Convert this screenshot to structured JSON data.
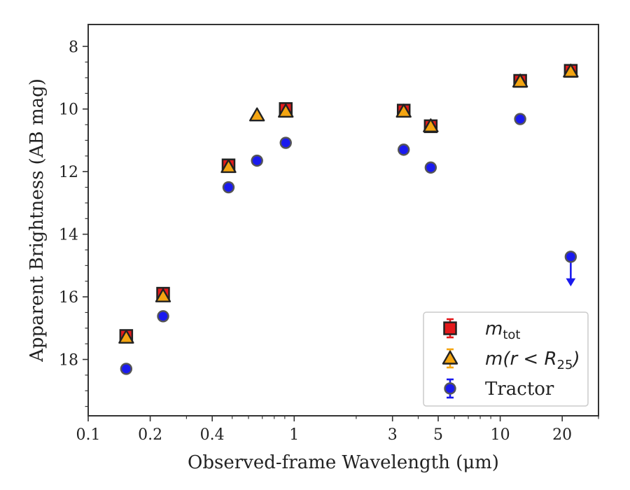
{
  "chart_data": {
    "type": "scatter",
    "xscale": "log",
    "xlim": [
      0.1,
      30
    ],
    "ylim": [
      19.8,
      7.3
    ],
    "y_inverted": true,
    "xlabel": "Observed-frame Wavelength (μm)",
    "ylabel": "Apparent Brightness (AB mag)",
    "x_ticks": [
      {
        "value": 0.1,
        "label": "0.1"
      },
      {
        "value": 0.2,
        "label": "0.2"
      },
      {
        "value": 0.4,
        "label": "0.4"
      },
      {
        "value": 1,
        "label": "1"
      },
      {
        "value": 3,
        "label": "3"
      },
      {
        "value": 5,
        "label": "5"
      },
      {
        "value": 10,
        "label": "10"
      },
      {
        "value": 20,
        "label": "20"
      }
    ],
    "y_ticks": [
      {
        "value": 8,
        "label": "8"
      },
      {
        "value": 10,
        "label": "10"
      },
      {
        "value": 12,
        "label": "12"
      },
      {
        "value": 14,
        "label": "14"
      },
      {
        "value": 16,
        "label": "16"
      },
      {
        "value": 18,
        "label": "18"
      }
    ],
    "legend_position": "lower-right",
    "series": [
      {
        "name": "m_tot",
        "legend_parts": {
          "main": "m",
          "sub": "tot"
        },
        "marker": "square",
        "color": "#e41a1c",
        "points": [
          {
            "x": 0.153,
            "y": 17.25
          },
          {
            "x": 0.231,
            "y": 15.9
          },
          {
            "x": 0.48,
            "y": 11.8
          },
          {
            "x": 0.91,
            "y": 10.0
          },
          {
            "x": 3.4,
            "y": 10.05
          },
          {
            "x": 4.6,
            "y": 10.55
          },
          {
            "x": 12.5,
            "y": 9.1
          },
          {
            "x": 22.0,
            "y": 8.78
          }
        ]
      },
      {
        "name": "m(r < R25)",
        "legend_parts": {
          "main": "m(r < R",
          "sub": "25",
          "tail": ")"
        },
        "marker": "triangle",
        "color": "#f4a511",
        "points": [
          {
            "x": 0.153,
            "y": 17.3
          },
          {
            "x": 0.231,
            "y": 15.98
          },
          {
            "x": 0.48,
            "y": 11.85
          },
          {
            "x": 0.66,
            "y": 10.2
          },
          {
            "x": 0.91,
            "y": 10.08
          },
          {
            "x": 3.4,
            "y": 10.08
          },
          {
            "x": 4.6,
            "y": 10.55
          },
          {
            "x": 12.5,
            "y": 9.12
          },
          {
            "x": 22.0,
            "y": 8.8
          }
        ]
      },
      {
        "name": "Tractor",
        "legend_parts": {
          "main": "Tractor"
        },
        "marker": "circle",
        "color": "#1a1aee",
        "points": [
          {
            "x": 0.153,
            "y": 18.3
          },
          {
            "x": 0.231,
            "y": 16.62
          },
          {
            "x": 0.48,
            "y": 12.5
          },
          {
            "x": 0.66,
            "y": 11.65
          },
          {
            "x": 0.91,
            "y": 11.08
          },
          {
            "x": 3.4,
            "y": 11.3
          },
          {
            "x": 4.6,
            "y": 11.87
          },
          {
            "x": 12.5,
            "y": 10.32
          },
          {
            "x": 22.0,
            "y": 14.72,
            "upper_limit": true,
            "limit_to": 15.6
          }
        ]
      }
    ]
  }
}
